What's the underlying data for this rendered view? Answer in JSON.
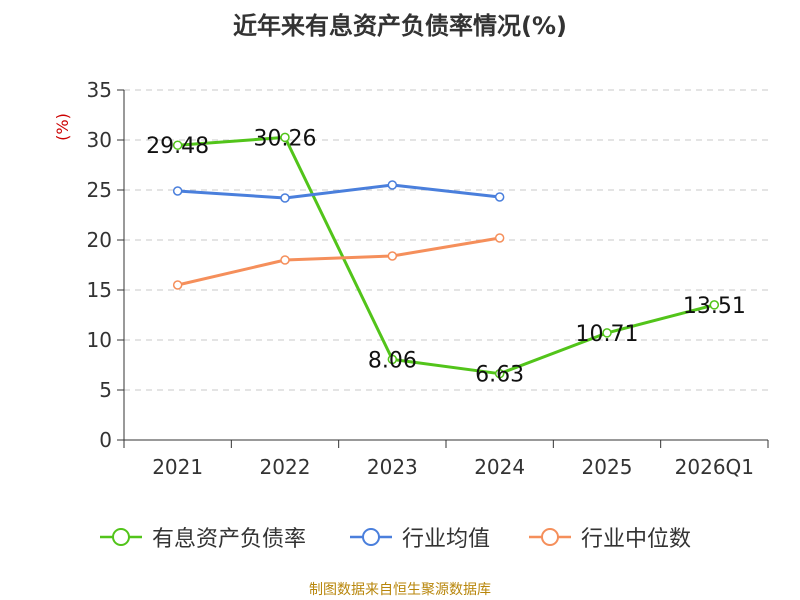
{
  "title": "近年来有息资产负债率情况(%)",
  "source_note": "制图数据来自恒生聚源数据库",
  "chart_data": {
    "type": "line",
    "categories": [
      "2021",
      "2022",
      "2023",
      "2024",
      "2025",
      "2026Q1"
    ],
    "ylabel": "(%)",
    "xlabel": "",
    "ylim": [
      0,
      35
    ],
    "yticks": [
      0,
      5,
      10,
      15,
      20,
      25,
      30,
      35
    ],
    "grid": true,
    "legend_position": "bottom",
    "series": [
      {
        "name": "有息资产负债率",
        "color": "#52c41a",
        "values": [
          29.48,
          30.26,
          8.06,
          6.63,
          10.71,
          13.51
        ],
        "show_labels": true
      },
      {
        "name": "行业均值",
        "color": "#4a7fdc",
        "values": [
          24.9,
          24.2,
          25.5,
          24.3,
          null,
          null
        ],
        "show_labels": false
      },
      {
        "name": "行业中位数",
        "color": "#f58f5b",
        "values": [
          15.5,
          18.0,
          18.4,
          20.2,
          null,
          null
        ],
        "show_labels": false
      }
    ]
  }
}
